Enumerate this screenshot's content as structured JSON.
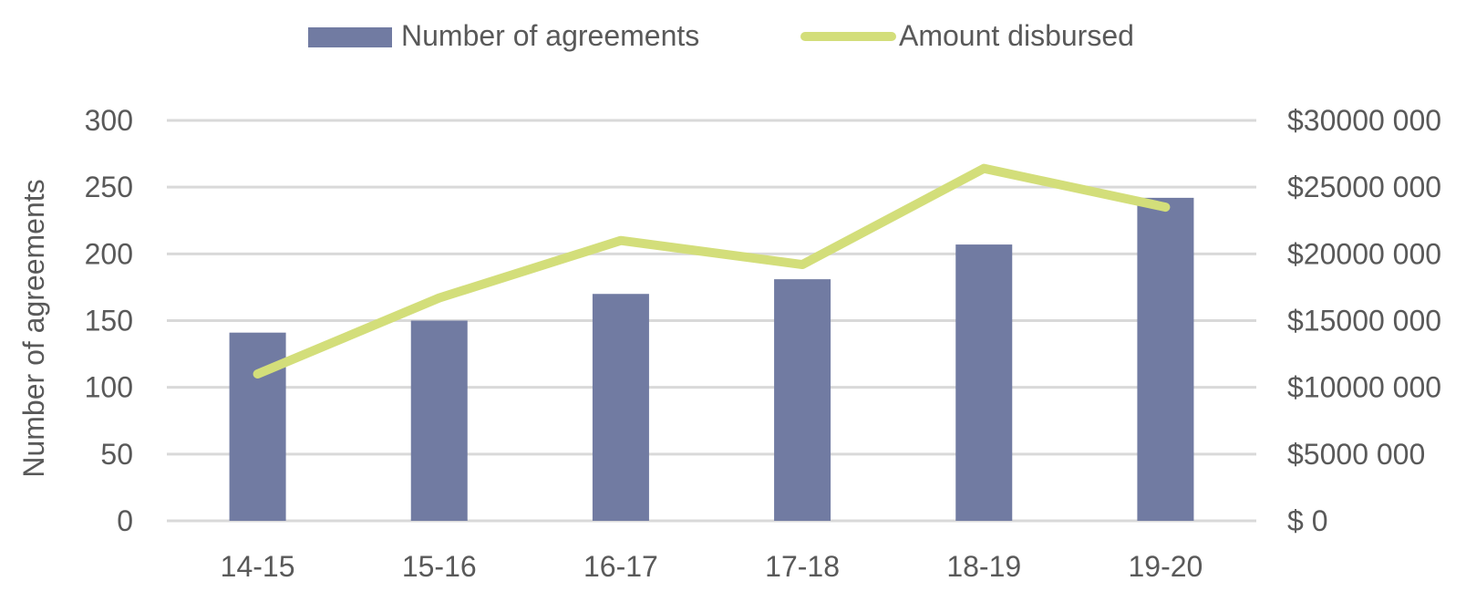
{
  "chart_data": {
    "type": "bar",
    "categories": [
      "14-15",
      "15-16",
      "16-17",
      "17-18",
      "18-19",
      "19-20"
    ],
    "series": [
      {
        "name": "Number of agreements",
        "type": "bar",
        "axis": "left",
        "color": "#717ba2",
        "values": [
          141,
          150,
          170,
          181,
          207,
          242
        ]
      },
      {
        "name": "Amount disbursed",
        "type": "line",
        "axis": "right",
        "color": "#d3de7a",
        "values": [
          11000000,
          16700000,
          21000000,
          19200000,
          26400000,
          23500000
        ]
      }
    ],
    "ylabel": "Number of agreements",
    "ylim": [
      0,
      300
    ],
    "y_ticks": [
      "0",
      "50",
      "100",
      "150",
      "200",
      "250",
      "300"
    ],
    "y2lim": [
      0,
      30000000
    ],
    "y2_ticks": [
      "$ 0",
      "$5000 000",
      "$10000 000",
      "$15000 000",
      "$20000 000",
      "$25000 000",
      "$30000 000"
    ],
    "grid": true,
    "legend_position": "top"
  }
}
